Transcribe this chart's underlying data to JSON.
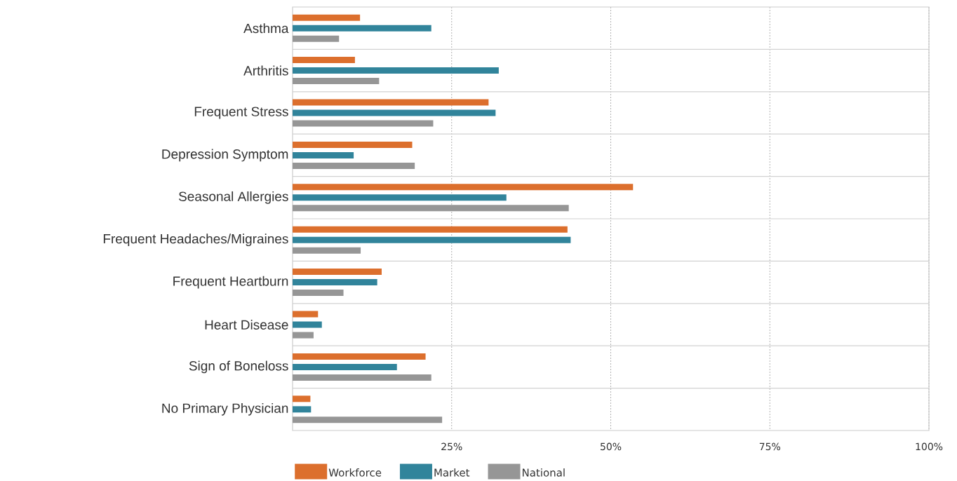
{
  "chart_data": {
    "type": "bar",
    "orientation": "horizontal",
    "categories": [
      "Asthma",
      "Arthritis",
      "Frequent Stress",
      "Depression Symptom",
      "Seasonal Allergies",
      "Frequent Headaches/Migraines",
      "Frequent Heartburn",
      "Heart Disease",
      "Sign of Boneloss",
      "No Primary Physician"
    ],
    "series": [
      {
        "name": "Workforce",
        "color": "#dc6f2d",
        "values": [
          10.6,
          9.8,
          30.8,
          18.8,
          53.5,
          43.2,
          14.0,
          4.0,
          20.9,
          2.8
        ]
      },
      {
        "name": "Market",
        "color": "#31849b",
        "values": [
          21.8,
          32.4,
          31.9,
          9.6,
          33.6,
          43.7,
          13.3,
          4.6,
          16.4,
          2.9
        ]
      },
      {
        "name": "National",
        "color": "#969696",
        "values": [
          7.3,
          13.6,
          22.1,
          19.2,
          43.4,
          10.7,
          8.0,
          3.3,
          21.8,
          23.5
        ]
      }
    ],
    "xlim": [
      0,
      100
    ],
    "xticks": [
      {
        "value": 25,
        "label": "25%"
      },
      {
        "value": 50,
        "label": "50%"
      },
      {
        "value": 75,
        "label": "75%"
      },
      {
        "value": 100,
        "label": "100%"
      }
    ],
    "grid": "x",
    "legend": "bottom"
  }
}
